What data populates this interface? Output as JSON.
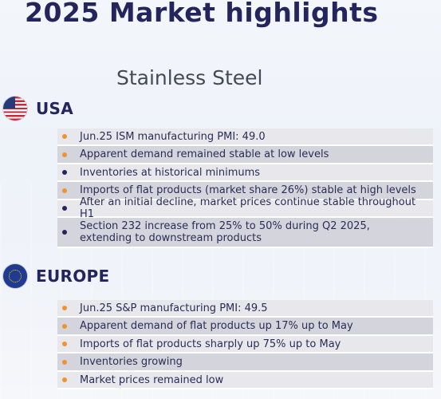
{
  "page": {
    "title": "2025 Market highlights",
    "subtitle": "Stainless Steel"
  },
  "colors": {
    "accent_orange": "#f0922e",
    "navy": "#25255e",
    "row_light": "#e7e7ec",
    "row_dark": "#d4d4dd"
  },
  "usa": {
    "flag_icon": "us-flag-icon",
    "name": "USA",
    "items": [
      {
        "text": "Jun.25 ISM manufacturing PMI: 49.0",
        "bullet": "orange"
      },
      {
        "text": "Apparent demand remained stable at low levels",
        "bullet": "orange"
      },
      {
        "text": "Inventories at historical minimums",
        "bullet": "navy"
      },
      {
        "text": "Imports of flat products (market share 26%) stable at high levels",
        "bullet": "orange"
      },
      {
        "text": "After an initial decline, market prices continue stable throughout H1",
        "bullet": "navy"
      },
      {
        "text": "Section 232 increase from 25% to 50% during Q2 2025,\nextending to downstream products",
        "bullet": "navy"
      }
    ]
  },
  "europe": {
    "flag_icon": "eu-flag-icon",
    "name": "EUROPE",
    "items": [
      {
        "text": "Jun.25 S&P manufacturing PMI: 49.5",
        "bullet": "orange"
      },
      {
        "text": "Apparent demand of flat products up 17% up to May",
        "bullet": "orange"
      },
      {
        "text": "Imports of flat products sharply up 75% up to May",
        "bullet": "orange"
      },
      {
        "text": "Inventories growing",
        "bullet": "orange"
      },
      {
        "text": "Market prices remained low",
        "bullet": "orange"
      }
    ]
  }
}
